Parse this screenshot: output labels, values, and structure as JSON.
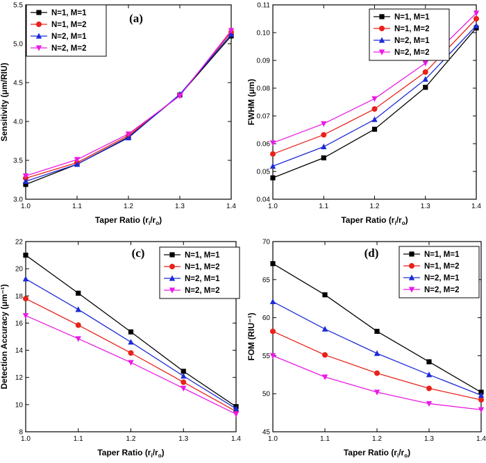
{
  "chart_data": [
    {
      "type": "line",
      "panel_label": "(a)",
      "xlabel_main": "Taper Ratio (r",
      "xlabel_sub1": "i",
      "xlabel_mid": "/r",
      "xlabel_sub2": "o",
      "xlabel_end": ")",
      "ylabel": "Sensitivity (μm/RIU)",
      "x": [
        1.0,
        1.1,
        1.2,
        1.3,
        1.4
      ],
      "xlim": [
        1.0,
        1.4
      ],
      "ylim": [
        3.0,
        5.5
      ],
      "xticks": [
        "1.0",
        "1.1",
        "1.2",
        "1.3",
        "1.4"
      ],
      "yticks": [
        "3.0",
        "3.5",
        "4.0",
        "4.5",
        "5.0",
        "5.5"
      ],
      "ytick_values": [
        3.0,
        3.5,
        4.0,
        4.5,
        5.0,
        5.5
      ],
      "legend_position": "top-left",
      "series": [
        {
          "name": "N=1, M=1",
          "color": "#000000",
          "marker": "square",
          "values": [
            3.19,
            3.45,
            3.8,
            4.34,
            5.1
          ]
        },
        {
          "name": "N=1, M=2",
          "color": "#e8221b",
          "marker": "circle",
          "values": [
            3.27,
            3.47,
            3.82,
            4.34,
            5.15
          ]
        },
        {
          "name": "N=2, M=1",
          "color": "#1c2bd6",
          "marker": "triangle-up",
          "values": [
            3.23,
            3.45,
            3.79,
            4.35,
            5.12
          ]
        },
        {
          "name": "N=2, M=2",
          "color": "#ea1ae6",
          "marker": "triangle-down",
          "values": [
            3.3,
            3.51,
            3.84,
            4.33,
            5.17
          ]
        }
      ]
    },
    {
      "type": "line",
      "panel_label": "(b)",
      "xlabel_main": "Taper Ratio (r",
      "xlabel_sub1": "i",
      "xlabel_mid": "/r",
      "xlabel_sub2": "o",
      "xlabel_end": ")",
      "ylabel": "FWHM (μm)",
      "x": [
        1.0,
        1.1,
        1.2,
        1.3,
        1.4
      ],
      "xlim": [
        1.0,
        1.4
      ],
      "ylim": [
        0.04,
        0.11
      ],
      "xticks": [
        "1.0",
        "1.1",
        "1.2",
        "1.3",
        "1.4"
      ],
      "yticks": [
        "0.04",
        "0.05",
        "0.06",
        "0.07",
        "0.08",
        "0.09",
        "0.10",
        "0.11"
      ],
      "ytick_values": [
        0.04,
        0.05,
        0.06,
        0.07,
        0.08,
        0.09,
        0.1,
        0.11
      ],
      "legend_position": "top-right",
      "series": [
        {
          "name": "N=1, M=1",
          "color": "#000000",
          "marker": "square",
          "values": [
            0.0477,
            0.0549,
            0.0652,
            0.0803,
            0.1017
          ]
        },
        {
          "name": "N=1, M=2",
          "color": "#e8221b",
          "marker": "circle",
          "values": [
            0.0563,
            0.0632,
            0.0725,
            0.0858,
            0.105
          ]
        },
        {
          "name": "N=2, M=1",
          "color": "#1c2bd6",
          "marker": "triangle-up",
          "values": [
            0.0519,
            0.0589,
            0.0687,
            0.0832,
            0.1025
          ]
        },
        {
          "name": "N=2, M=2",
          "color": "#ea1ae6",
          "marker": "triangle-down",
          "values": [
            0.0603,
            0.0672,
            0.0762,
            0.089,
            0.107
          ]
        }
      ]
    },
    {
      "type": "line",
      "panel_label": "(c)",
      "xlabel_main": "Taper Ratio (r",
      "xlabel_sub1": "i",
      "xlabel_mid": "/r",
      "xlabel_sub2": "o",
      "xlabel_end": ")",
      "ylabel": "Detection Accuracy (μm⁻¹)",
      "x": [
        1.0,
        1.1,
        1.2,
        1.3,
        1.4
      ],
      "xlim": [
        1.0,
        1.4
      ],
      "ylim": [
        8,
        22
      ],
      "xticks": [
        "1.0",
        "1.1",
        "1.2",
        "1.3",
        "1.4"
      ],
      "yticks": [
        "8",
        "10",
        "12",
        "14",
        "16",
        "18",
        "20",
        "22"
      ],
      "ytick_values": [
        8,
        10,
        12,
        14,
        16,
        18,
        20,
        22
      ],
      "legend_position": "top-right",
      "series": [
        {
          "name": "N=1, M=1",
          "color": "#000000",
          "marker": "square",
          "values": [
            21.0,
            18.2,
            15.35,
            12.45,
            9.85
          ]
        },
        {
          "name": "N=1, M=2",
          "color": "#e8221b",
          "marker": "circle",
          "values": [
            17.8,
            15.85,
            13.8,
            11.65,
            9.5
          ]
        },
        {
          "name": "N=2, M=1",
          "color": "#1c2bd6",
          "marker": "triangle-up",
          "values": [
            19.25,
            17.0,
            14.6,
            12.1,
            9.7
          ]
        },
        {
          "name": "N=2, M=2",
          "color": "#ea1ae6",
          "marker": "triangle-down",
          "values": [
            16.55,
            14.85,
            13.1,
            11.2,
            9.3
          ]
        }
      ]
    },
    {
      "type": "line",
      "panel_label": "(d)",
      "xlabel_main": "Taper Ratio (r",
      "xlabel_sub1": "i",
      "xlabel_mid": "/r",
      "xlabel_sub2": "o",
      "xlabel_end": ")",
      "ylabel": "FOM (RIU⁻¹)",
      "x": [
        1.0,
        1.1,
        1.2,
        1.3,
        1.4
      ],
      "xlim": [
        1.0,
        1.4
      ],
      "ylim": [
        45,
        70
      ],
      "xticks": [
        "1.0",
        "1.1",
        "1.2",
        "1.3",
        "1.4"
      ],
      "yticks": [
        "45",
        "50",
        "55",
        "60",
        "65",
        "70"
      ],
      "ytick_values": [
        45,
        50,
        55,
        60,
        65,
        70
      ],
      "legend_position": "top-right",
      "series": [
        {
          "name": "N=1, M=1",
          "color": "#000000",
          "marker": "square",
          "values": [
            67.1,
            63.0,
            58.2,
            54.2,
            50.2
          ]
        },
        {
          "name": "N=1, M=2",
          "color": "#e8221b",
          "marker": "circle",
          "values": [
            58.2,
            55.1,
            52.7,
            50.7,
            49.2
          ]
        },
        {
          "name": "N=2, M=1",
          "color": "#1c2bd6",
          "marker": "triangle-up",
          "values": [
            62.1,
            58.5,
            55.3,
            52.5,
            49.8
          ]
        },
        {
          "name": "N=2, M=2",
          "color": "#ea1ae6",
          "marker": "triangle-down",
          "values": [
            55.0,
            52.2,
            50.2,
            48.7,
            47.9
          ]
        }
      ]
    }
  ]
}
